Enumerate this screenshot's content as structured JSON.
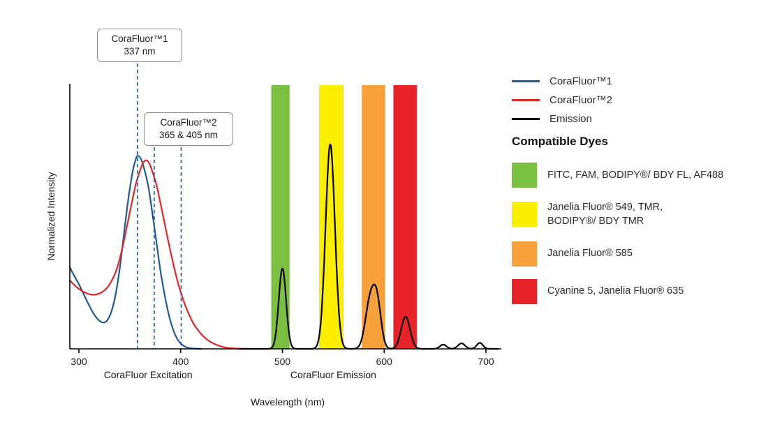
{
  "colors": {
    "blue": "#1e5b97",
    "red": "#e42627",
    "black": "#000000",
    "green": "#7bbf43",
    "yellow": "#fcee00",
    "orange": "#f7a13c",
    "band_red": "#e8232a"
  },
  "chart_data": {
    "type": "line",
    "title": "",
    "xlabel": "Wavelength (nm)",
    "ylabel": "Normalized Intensity",
    "x_ticks": [
      300,
      400,
      500,
      600,
      700
    ],
    "ylim": [
      0,
      1
    ],
    "grid": false,
    "axis_sublabels": [
      {
        "text": "CoraFluor Excitation",
        "center_nm": 368
      },
      {
        "text": "CoraFluor Emission",
        "center_nm": 550
      }
    ],
    "bands": [
      {
        "name": "green-filter-band",
        "from_nm": 489,
        "to_nm": 507,
        "color": "#7bbf43"
      },
      {
        "name": "yellow-filter-band",
        "from_nm": 536,
        "to_nm": 560,
        "color": "#fcee00"
      },
      {
        "name": "orange-filter-band",
        "from_nm": 578,
        "to_nm": 601,
        "color": "#f7a13c"
      },
      {
        "name": "red-filter-band",
        "from_nm": 609,
        "to_nm": 632,
        "color": "#e8232a"
      }
    ],
    "series": [
      {
        "name": "CoraFluor™1",
        "color": "#1e5b97",
        "points": [
          [
            291,
            0.31
          ],
          [
            295,
            0.28
          ],
          [
            300,
            0.245
          ],
          [
            305,
            0.205
          ],
          [
            310,
            0.165
          ],
          [
            315,
            0.13
          ],
          [
            320,
            0.107
          ],
          [
            325,
            0.1
          ],
          [
            329,
            0.115
          ],
          [
            333,
            0.155
          ],
          [
            337,
            0.225
          ],
          [
            341,
            0.33
          ],
          [
            345,
            0.46
          ],
          [
            349,
            0.58
          ],
          [
            353,
            0.675
          ],
          [
            356,
            0.72
          ],
          [
            358,
            0.732
          ],
          [
            361,
            0.72
          ],
          [
            364,
            0.685
          ],
          [
            368,
            0.62
          ],
          [
            372,
            0.52
          ],
          [
            376,
            0.41
          ],
          [
            380,
            0.3
          ],
          [
            384,
            0.21
          ],
          [
            388,
            0.135
          ],
          [
            392,
            0.08
          ],
          [
            396,
            0.042
          ],
          [
            400,
            0.02
          ],
          [
            404,
            0.009
          ],
          [
            409,
            0.003
          ],
          [
            414,
            0.001
          ],
          [
            420,
            0
          ]
        ]
      },
      {
        "name": "CoraFluor™2",
        "color": "#e42627",
        "points": [
          [
            291,
            0.26
          ],
          [
            296,
            0.24
          ],
          [
            302,
            0.222
          ],
          [
            308,
            0.21
          ],
          [
            314,
            0.205
          ],
          [
            320,
            0.21
          ],
          [
            326,
            0.225
          ],
          [
            331,
            0.25
          ],
          [
            336,
            0.29
          ],
          [
            340,
            0.34
          ],
          [
            344,
            0.405
          ],
          [
            348,
            0.48
          ],
          [
            352,
            0.555
          ],
          [
            356,
            0.625
          ],
          [
            360,
            0.675
          ],
          [
            363,
            0.705
          ],
          [
            366,
            0.715
          ],
          [
            369,
            0.705
          ],
          [
            372,
            0.675
          ],
          [
            376,
            0.625
          ],
          [
            380,
            0.555
          ],
          [
            384,
            0.48
          ],
          [
            388,
            0.405
          ],
          [
            392,
            0.335
          ],
          [
            396,
            0.27
          ],
          [
            400,
            0.215
          ],
          [
            404,
            0.17
          ],
          [
            408,
            0.132
          ],
          [
            412,
            0.1
          ],
          [
            416,
            0.076
          ],
          [
            420,
            0.057
          ],
          [
            425,
            0.038
          ],
          [
            430,
            0.025
          ],
          [
            436,
            0.014
          ],
          [
            442,
            0.007
          ],
          [
            448,
            0.003
          ],
          [
            455,
            0.001
          ],
          [
            462,
            0
          ]
        ]
      },
      {
        "name": "Emission",
        "color": "#000000",
        "range": [
          458,
          712
        ],
        "peaks": [
          {
            "center": 500,
            "height": 0.305,
            "sigma": 3.6
          },
          {
            "center": 547,
            "height": 0.775,
            "sigma": 4.6
          },
          {
            "center": 586,
            "height": 0.175,
            "sigma": 4.6
          },
          {
            "center": 593,
            "height": 0.165,
            "sigma": 4.0
          },
          {
            "center": 621,
            "height": 0.122,
            "sigma": 4.4
          },
          {
            "center": 658,
            "height": 0.016,
            "sigma": 3.2
          },
          {
            "center": 676,
            "height": 0.021,
            "sigma": 3.4
          },
          {
            "center": 694,
            "height": 0.023,
            "sigma": 3.0
          }
        ]
      }
    ],
    "annotations": [
      {
        "title": "CoraFluor™1",
        "subtitle": "337 nm",
        "lines_nm": [
          357.5
        ]
      },
      {
        "title": "CoraFluor™2",
        "subtitle": "365 & 405 nm",
        "lines_nm": [
          374,
          400.5
        ]
      }
    ]
  },
  "legend": {
    "items": [
      {
        "label": "CoraFluor™1",
        "color": "#1e5b97"
      },
      {
        "label": "CoraFluor™2",
        "color": "#e42627"
      },
      {
        "label": "Emission",
        "color": "#000000"
      }
    ],
    "dyes_heading": "Compatible Dyes",
    "dyes": [
      {
        "color": "#7bbf43",
        "label": "FITC, FAM, BODIPY®/ BDY FL, AF488"
      },
      {
        "color": "#fcee00",
        "label": "Janelia Fluor® 549, TMR,\nBODIPY®/ BDY TMR"
      },
      {
        "color": "#f7a13c",
        "label": "Janelia Fluor® 585"
      },
      {
        "color": "#e8232a",
        "label": "Cyanine 5, Janelia Fluor® 635"
      }
    ]
  }
}
